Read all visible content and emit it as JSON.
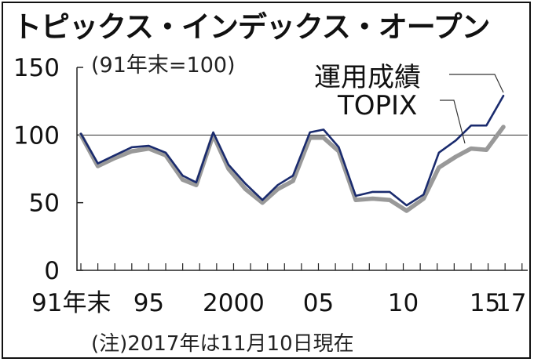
{
  "title": "トピックス・インデックス・オープン",
  "footnote": "(注)2017年は11月10日現在",
  "chart_data": {
    "type": "line",
    "title": "トピックス・インデックス・オープン",
    "unit_note": "(91年末=100)",
    "ylim": [
      0,
      150
    ],
    "yticks": [
      0,
      50,
      100,
      150
    ],
    "reference_line": 100,
    "x_tick_labels": [
      {
        "x": 1991,
        "label": "91年末"
      },
      {
        "x": 1995,
        "label": "95"
      },
      {
        "x": 2000,
        "label": "2000"
      },
      {
        "x": 2005,
        "label": "05"
      },
      {
        "x": 2010,
        "label": "10"
      },
      {
        "x": 2015,
        "label": "15"
      },
      {
        "x": 2017,
        "label": "17"
      }
    ],
    "series": [
      {
        "name": "運用成績",
        "color": "#1a2b6e",
        "points": [
          [
            1991.0,
            101
          ],
          [
            1992.0,
            79
          ],
          [
            1993.0,
            85
          ],
          [
            1994.0,
            91
          ],
          [
            1995.0,
            92
          ],
          [
            1996.0,
            87
          ],
          [
            1997.0,
            70
          ],
          [
            1997.8,
            65
          ],
          [
            1998.8,
            102
          ],
          [
            1999.7,
            78
          ],
          [
            2000.7,
            64
          ],
          [
            2001.7,
            52
          ],
          [
            2002.6,
            63
          ],
          [
            2003.5,
            70
          ],
          [
            2004.5,
            102
          ],
          [
            2005.3,
            104
          ],
          [
            2006.2,
            91
          ],
          [
            2007.2,
            55
          ],
          [
            2008.2,
            58
          ],
          [
            2009.2,
            58
          ],
          [
            2010.2,
            48
          ],
          [
            2011.2,
            56
          ],
          [
            2012.1,
            87
          ],
          [
            2013.1,
            96
          ],
          [
            2014.0,
            107
          ],
          [
            2014.9,
            107
          ],
          [
            2015.9,
            129
          ]
        ]
      },
      {
        "name": "TOPIX",
        "color": "#999999",
        "points": [
          [
            1991.0,
            100
          ],
          [
            1992.0,
            77
          ],
          [
            1993.0,
            83
          ],
          [
            1994.0,
            88
          ],
          [
            1995.0,
            90
          ],
          [
            1996.0,
            85
          ],
          [
            1997.0,
            67
          ],
          [
            1997.8,
            63
          ],
          [
            1998.8,
            100
          ],
          [
            1999.7,
            75
          ],
          [
            2000.7,
            60
          ],
          [
            2001.7,
            50
          ],
          [
            2002.6,
            60
          ],
          [
            2003.5,
            66
          ],
          [
            2004.5,
            98
          ],
          [
            2005.3,
            98
          ],
          [
            2006.2,
            88
          ],
          [
            2007.2,
            52
          ],
          [
            2008.2,
            53
          ],
          [
            2009.2,
            52
          ],
          [
            2010.2,
            44
          ],
          [
            2011.2,
            53
          ],
          [
            2012.1,
            76
          ],
          [
            2013.1,
            84
          ],
          [
            2014.0,
            90
          ],
          [
            2014.9,
            89
          ],
          [
            2015.9,
            106
          ]
        ]
      }
    ]
  }
}
